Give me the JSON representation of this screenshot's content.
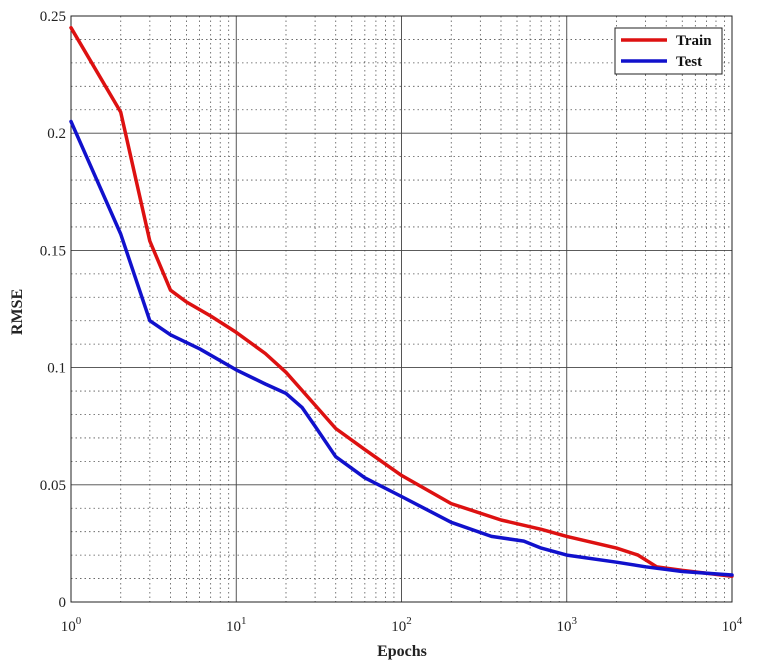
{
  "chart_data": {
    "type": "line",
    "xlabel": "Epochs",
    "ylabel": "RMSE",
    "xscale": "log",
    "xlim": [
      1,
      10000
    ],
    "ylim": [
      0,
      0.25
    ],
    "x_ticks": [
      {
        "base": "10",
        "exp": "0"
      },
      {
        "base": "10",
        "exp": "1"
      },
      {
        "base": "10",
        "exp": "2"
      },
      {
        "base": "10",
        "exp": "3"
      },
      {
        "base": "10",
        "exp": "4"
      }
    ],
    "y_ticks": [
      "0",
      "0.05",
      "0.1",
      "0.15",
      "0.2",
      "0.25"
    ],
    "y_tick_values": [
      0,
      0.05,
      0.1,
      0.15,
      0.2,
      0.25
    ],
    "grid": true,
    "legend_position": "top-right",
    "series": [
      {
        "name": "Train",
        "color": "#dd1111",
        "points": [
          [
            1,
            0.245
          ],
          [
            2,
            0.209
          ],
          [
            3,
            0.154
          ],
          [
            4,
            0.133
          ],
          [
            5,
            0.128
          ],
          [
            7,
            0.122
          ],
          [
            10,
            0.115
          ],
          [
            15,
            0.106
          ],
          [
            20,
            0.098
          ],
          [
            30,
            0.084
          ],
          [
            40,
            0.074
          ],
          [
            60,
            0.065
          ],
          [
            100,
            0.054
          ],
          [
            200,
            0.042
          ],
          [
            400,
            0.035
          ],
          [
            700,
            0.031
          ],
          [
            1000,
            0.028
          ],
          [
            2000,
            0.023
          ],
          [
            2700,
            0.02
          ],
          [
            3500,
            0.015
          ],
          [
            5000,
            0.0135
          ],
          [
            10000,
            0.011
          ]
        ]
      },
      {
        "name": "Test",
        "color": "#1111cc",
        "points": [
          [
            1,
            0.205
          ],
          [
            2,
            0.157
          ],
          [
            3,
            0.12
          ],
          [
            4,
            0.114
          ],
          [
            6,
            0.108
          ],
          [
            10,
            0.099
          ],
          [
            15,
            0.093
          ],
          [
            20,
            0.089
          ],
          [
            25,
            0.083
          ],
          [
            30,
            0.075
          ],
          [
            40,
            0.062
          ],
          [
            60,
            0.053
          ],
          [
            100,
            0.045
          ],
          [
            200,
            0.034
          ],
          [
            350,
            0.028
          ],
          [
            550,
            0.026
          ],
          [
            700,
            0.023
          ],
          [
            1000,
            0.02
          ],
          [
            2000,
            0.017
          ],
          [
            3000,
            0.015
          ],
          [
            5000,
            0.013
          ],
          [
            10000,
            0.0115
          ]
        ]
      }
    ]
  }
}
